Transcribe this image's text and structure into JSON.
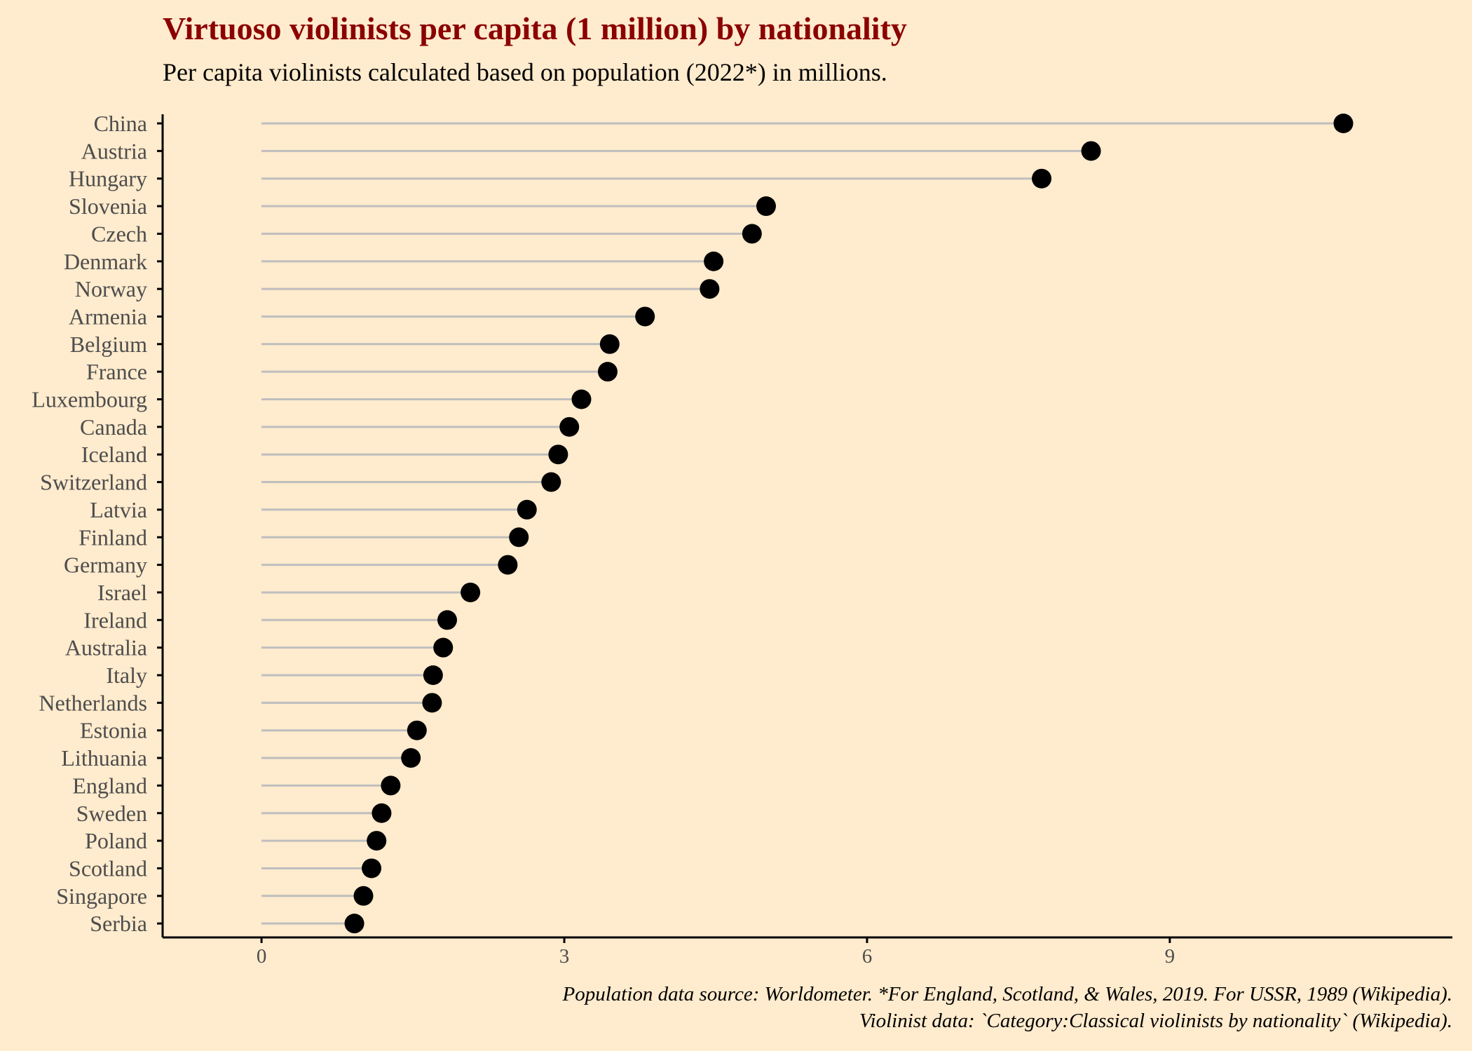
{
  "title": "Virtuoso violinists per capita (1 million) by nationality",
  "subtitle": "Per capita violinists calculated based on population (2022*) in millions.",
  "caption": [
    "Population data source: Worldometer. *For England, Scotland, & Wales, 2019. For USSR, 1989 (Wikipedia).",
    "Violinist data: `Category:Classical violinists by nationality` (Wikipedia)."
  ],
  "colors": {
    "background": "#FFEBCD",
    "title": "#8B0000",
    "point": "#000000",
    "segment": "#BEBEBE",
    "axis": "#000000",
    "label": "#4D4D4D"
  },
  "chart_data": {
    "type": "scatter",
    "style": "lollipop",
    "orientation": "horizontal",
    "title": "Virtuoso violinists per capita (1 million) by nationality",
    "subtitle": "Per capita violinists calculated based on population (2022*) in millions.",
    "xlabel": "",
    "ylabel": "",
    "xlim": [
      -0.98,
      11.8
    ],
    "xticks": [
      0,
      3,
      6,
      9
    ],
    "grid": false,
    "legend": "none",
    "categories": [
      "China",
      "Austria",
      "Hungary",
      "Slovenia",
      "Czech",
      "Denmark",
      "Norway",
      "Armenia",
      "Belgium",
      "France",
      "Luxembourg",
      "Canada",
      "Iceland",
      "Switzerland",
      "Latvia",
      "Finland",
      "Germany",
      "Israel",
      "Ireland",
      "Australia",
      "Italy",
      "Netherlands",
      "Estonia",
      "Lithuania",
      "England",
      "Sweden",
      "Poland",
      "Scotland",
      "Singapore",
      "Serbia"
    ],
    "values": [
      10.72,
      8.22,
      7.73,
      5.0,
      4.86,
      4.48,
      4.44,
      3.8,
      3.45,
      3.43,
      3.17,
      3.05,
      2.94,
      2.87,
      2.63,
      2.55,
      2.44,
      2.07,
      1.84,
      1.8,
      1.7,
      1.69,
      1.54,
      1.48,
      1.28,
      1.19,
      1.14,
      1.09,
      1.01,
      0.92
    ]
  }
}
